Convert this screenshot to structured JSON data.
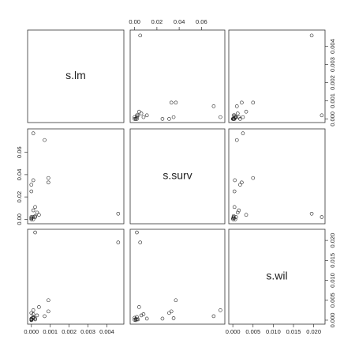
{
  "chart_data": {
    "type": "pairs",
    "variables": [
      {
        "name": "s.lm",
        "lim": [
          -0.0002,
          0.0049
        ],
        "ticks": [
          {
            "value": 0,
            "label": "0.000"
          },
          {
            "value": 0.001,
            "label": "0.001"
          },
          {
            "value": 0.002,
            "label": "0.002"
          },
          {
            "value": 0.003,
            "label": "0.003"
          },
          {
            "value": 0.004,
            "label": "0.004"
          }
        ],
        "values": [
          0.0046,
          0.0002,
          0.0009,
          0.0009,
          0.0,
          0.0001,
          0.0007,
          0.0,
          0.0004,
          0.0002,
          0.0001,
          0.0001,
          0.0,
          0.0001,
          0.0,
          0.0002,
          0.0,
          0.0001,
          0.0003,
          0.0
        ]
      },
      {
        "name": "s.surv",
        "lim": [
          -0.004,
          0.081
        ],
        "ticks": [
          {
            "value": 0,
            "label": "0.00"
          },
          {
            "value": 0.02,
            "label": "0.02"
          },
          {
            "value": 0.04,
            "label": "0.04"
          },
          {
            "value": 0.06,
            "label": "0.06"
          }
        ],
        "values": [
          0.005,
          0.002,
          0.037,
          0.033,
          0.031,
          0.077,
          0.071,
          0.025,
          0.004,
          0.011,
          0.008,
          0.035,
          0.001,
          0.002,
          0.0,
          0.003,
          0.001,
          0.0,
          0.006,
          0.002
        ]
      },
      {
        "name": "s.wil",
        "lim": [
          -0.001,
          0.0228
        ],
        "ticks": [
          {
            "value": 0,
            "label": "0.000"
          },
          {
            "value": 0.005,
            "label": "0.005"
          },
          {
            "value": 0.01,
            "label": "0.010"
          },
          {
            "value": 0.015,
            "label": "0.015"
          },
          {
            "value": 0.02,
            "label": "0.020"
          }
        ],
        "values": [
          0.0195,
          0.022,
          0.005,
          0.0022,
          0.0018,
          0.0025,
          0.001,
          0.0004,
          0.0033,
          0.0004,
          0.0015,
          0.0005,
          0.0003,
          0.0008,
          0.0001,
          0.0002,
          0.0,
          0.0006,
          0.0012,
          0.0002
        ]
      }
    ]
  }
}
